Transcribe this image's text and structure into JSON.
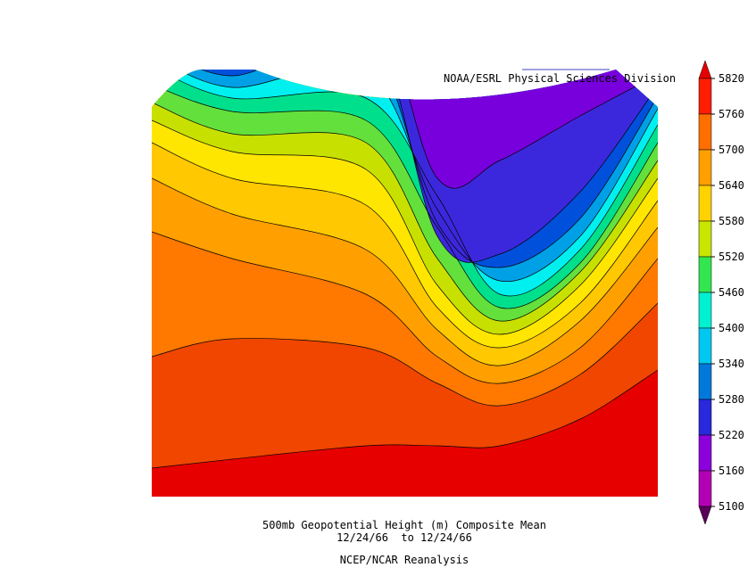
{
  "header": {
    "credit": "NOAA/ESRL Physical Sciences Division"
  },
  "colorbar": {
    "ticks": [
      5820,
      5760,
      5700,
      5640,
      5580,
      5520,
      5460,
      5400,
      5340,
      5280,
      5220,
      5160,
      5100
    ],
    "colors": [
      "#e60000",
      "#ff1e00",
      "#ff6e00",
      "#ffa000",
      "#ffd200",
      "#c8e600",
      "#32e650",
      "#00f0d2",
      "#00c8f0",
      "#0078dc",
      "#2828dc",
      "#8c00dc",
      "#b400b4",
      "#5a005a"
    ]
  },
  "caption": {
    "title": "500mb Geopotential Height (m) Composite Mean",
    "dates": "12/24/66  to 12/24/66",
    "source": "NCEP/NCAR Reanalysis"
  }
}
